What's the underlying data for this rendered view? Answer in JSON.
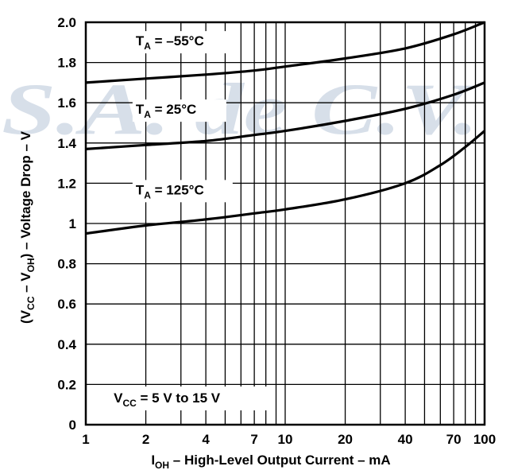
{
  "watermark": {
    "text": "S.A. de C.V.",
    "color": "#b7c5d8"
  },
  "chart_data": {
    "type": "line",
    "x_scale": "log",
    "xlim": [
      1,
      100
    ],
    "ylim": [
      0,
      2.0
    ],
    "grid": true,
    "x_ticks": [
      {
        "value": 1,
        "label": "1"
      },
      {
        "value": 2,
        "label": "2"
      },
      {
        "value": 4,
        "label": "4"
      },
      {
        "value": 7,
        "label": "7"
      },
      {
        "value": 10,
        "label": "10"
      },
      {
        "value": 20,
        "label": "20"
      },
      {
        "value": 40,
        "label": "40"
      },
      {
        "value": 70,
        "label": "70"
      },
      {
        "value": 100,
        "label": "100"
      }
    ],
    "x_minor_gridlines": [
      3,
      5,
      6,
      8,
      9,
      30,
      50,
      60,
      80,
      90
    ],
    "y_ticks": [
      {
        "value": 0,
        "label": "0"
      },
      {
        "value": 0.2,
        "label": "0.2"
      },
      {
        "value": 0.4,
        "label": "0.4"
      },
      {
        "value": 0.6,
        "label": "0.6"
      },
      {
        "value": 0.8,
        "label": "0.8"
      },
      {
        "value": 1,
        "label": "1"
      },
      {
        "value": 1.2,
        "label": "1.2"
      },
      {
        "value": 1.4,
        "label": "1.4"
      },
      {
        "value": 1.6,
        "label": "1.6"
      },
      {
        "value": 1.8,
        "label": "1.8"
      },
      {
        "value": 2.0,
        "label": "2.0"
      }
    ],
    "xlabel": {
      "main": "I",
      "sub": "OH",
      "rest": " – High-Level Output Current – mA"
    },
    "ylabel": {
      "p1": "(V",
      "s1": "CC",
      "p2": " – V",
      "s2": "OH",
      "p3": ") – Voltage Drop – V"
    },
    "series": [
      {
        "label": {
          "main": "T",
          "sub": "A",
          "rest": " = –55°C"
        },
        "x": [
          1,
          2,
          4,
          7,
          10,
          20,
          40,
          70,
          100
        ],
        "y": [
          1.7,
          1.72,
          1.74,
          1.76,
          1.78,
          1.82,
          1.87,
          1.94,
          2.0
        ]
      },
      {
        "label": {
          "main": "T",
          "sub": "A",
          "rest": " = 25°C"
        },
        "x": [
          1,
          2,
          4,
          7,
          10,
          20,
          40,
          70,
          100
        ],
        "y": [
          1.37,
          1.39,
          1.41,
          1.44,
          1.46,
          1.51,
          1.57,
          1.64,
          1.7
        ]
      },
      {
        "label": {
          "main": "T",
          "sub": "A",
          "rest": " = 125°C"
        },
        "x": [
          1,
          2,
          4,
          7,
          10,
          20,
          40,
          60,
          80,
          100
        ],
        "y": [
          0.95,
          0.99,
          1.02,
          1.05,
          1.07,
          1.12,
          1.2,
          1.29,
          1.38,
          1.46
        ]
      }
    ],
    "annotation": {
      "main": "V",
      "sub": "CC",
      "rest": " = 5 V to 15 V"
    }
  }
}
